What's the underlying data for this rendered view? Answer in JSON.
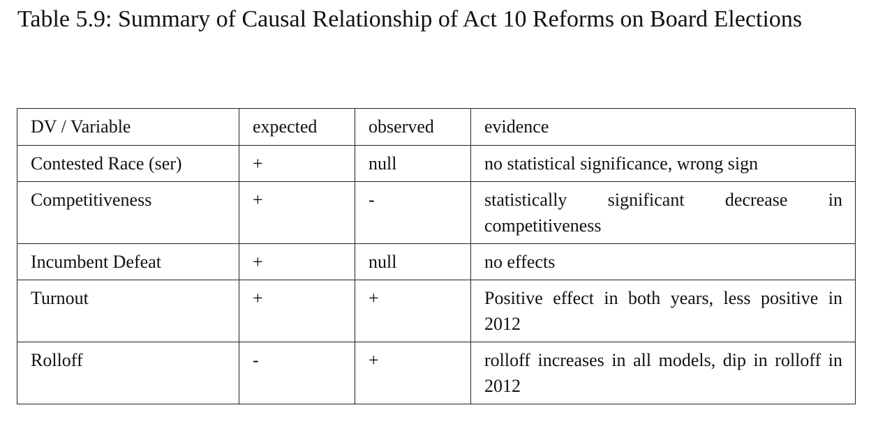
{
  "title": "Table 5.9: Summary of Causal Relationship of Act 10 Reforms on Board Elections",
  "table": {
    "header": [
      "DV / Variable",
      "expected",
      "observed",
      "evidence"
    ],
    "rows": [
      [
        "Contested Race (ser)",
        "+",
        "null",
        "no statistical significance, wrong sign"
      ],
      [
        "Competitiveness",
        "+",
        "-",
        "statistically significant decrease in competitiveness"
      ],
      [
        "Incumbent Defeat",
        "+",
        "null",
        "no effects"
      ],
      [
        "Turnout",
        "+",
        "+",
        "Positive effect in both years, less positive in 2012"
      ],
      [
        "Rolloff",
        "-",
        "+",
        "rolloff increases in all models, dip in rolloff in 2012"
      ]
    ]
  }
}
